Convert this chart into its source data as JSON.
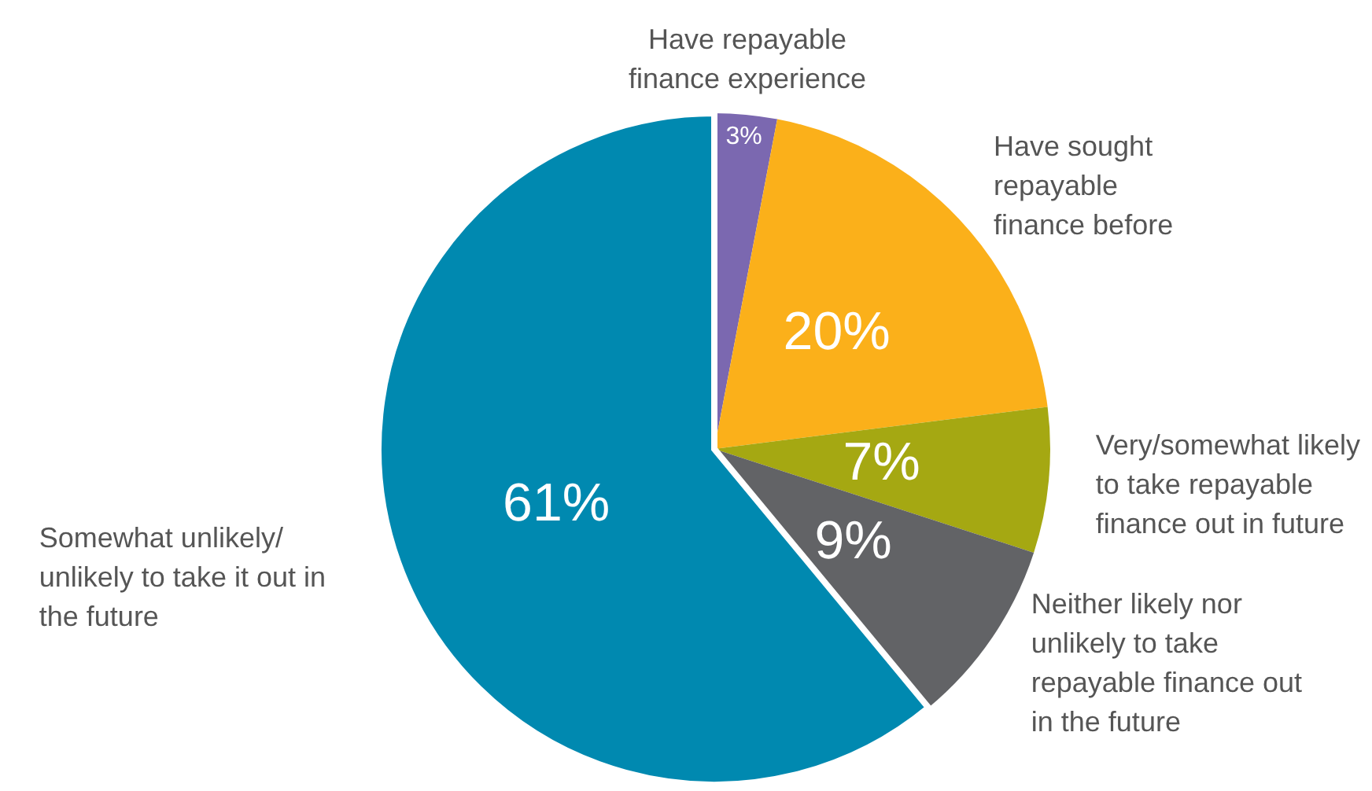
{
  "chart_data": {
    "type": "pie",
    "categories": [
      "Have repayable finance experience",
      "Have sought repayable finance before",
      "Very/somewhat likely to take repayable finance out in future",
      "Neither likely nor unlikely to take repayable finance out in the future",
      "Somewhat unlikely/ unlikely to take it out in the future"
    ],
    "values": [
      3,
      20,
      7,
      9,
      61
    ],
    "colors": [
      "#7b68b0",
      "#fbb01a",
      "#a5a812",
      "#626366",
      "#0089b0"
    ],
    "value_labels": [
      "3%",
      "20%",
      "7%",
      "9%",
      "61%"
    ],
    "legend": false
  }
}
